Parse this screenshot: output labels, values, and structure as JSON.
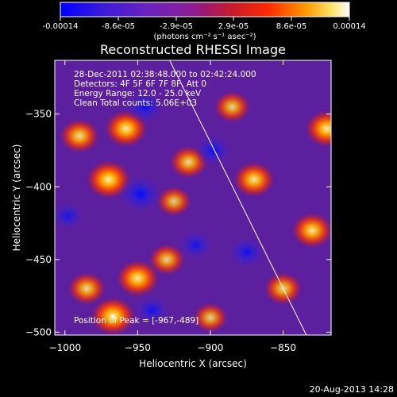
{
  "colorbar": {
    "ticks": [
      "-0.00014",
      "-8.6e-05",
      "-2.9e-05",
      "2.9e-05",
      "8.6e-05",
      "0.00014"
    ],
    "unit_label": "(photons cm⁻² s⁻¹ asec⁻²)"
  },
  "chart": {
    "title": "Reconstructed RHESSI Image",
    "xlabel": "Heliocentric X (arcsec)",
    "ylabel": "Heliocentric Y (arcsec)",
    "info_lines": [
      "28-Dec-2011 02:38:48.000 to 02:42:24.000",
      "Detectors: 4F 5F 6F 7F 8F, Att 0",
      "Energy Range: 12.0 - 25.0 keV",
      "Clean    Total counts: 5.06E+03"
    ],
    "peak_text": "Position of Peak = [-967,-489]"
  },
  "footer": {
    "date": "20-Aug-2013 14:28"
  },
  "chart_data": {
    "type": "heatmap",
    "title": "Reconstructed RHESSI Image",
    "xlabel": "Heliocentric X (arcsec)",
    "ylabel": "Heliocentric Y (arcsec)",
    "xlim": [
      -1007,
      -817
    ],
    "ylim": [
      -502,
      -313
    ],
    "x_ticks": [
      -1000,
      -950,
      -900,
      -850
    ],
    "y_ticks": [
      -350,
      -400,
      -450,
      -500
    ],
    "colorbar_range": [
      -0.00014,
      0.00014
    ],
    "peak_position": [
      -967,
      -489
    ],
    "limb_line": [
      [
        -928,
        -313
      ],
      [
        -834,
        -502
      ]
    ],
    "features": [
      {
        "x": -958,
        "y": -360,
        "value": 0.00013
      },
      {
        "x": -990,
        "y": -365,
        "value": 0.00011
      },
      {
        "x": -970,
        "y": -395,
        "value": 0.00014
      },
      {
        "x": -915,
        "y": -383,
        "value": 0.0001
      },
      {
        "x": -925,
        "y": -410,
        "value": 8e-05
      },
      {
        "x": -870,
        "y": -395,
        "value": 0.00012
      },
      {
        "x": -885,
        "y": -345,
        "value": 9e-05
      },
      {
        "x": -820,
        "y": -360,
        "value": 0.00013
      },
      {
        "x": -830,
        "y": -430,
        "value": 0.00012
      },
      {
        "x": -850,
        "y": -470,
        "value": 0.0001
      },
      {
        "x": -950,
        "y": -463,
        "value": 0.00013
      },
      {
        "x": -985,
        "y": -470,
        "value": 0.0001
      },
      {
        "x": -967,
        "y": -489,
        "value": 0.00014
      },
      {
        "x": -930,
        "y": -450,
        "value": 9e-05
      },
      {
        "x": -900,
        "y": -490,
        "value": 8e-05
      },
      {
        "x": -948,
        "y": -405,
        "value": -0.00014
      },
      {
        "x": -945,
        "y": -345,
        "value": -0.00011
      },
      {
        "x": -898,
        "y": -375,
        "value": -0.0001
      },
      {
        "x": -875,
        "y": -445,
        "value": -0.0001
      },
      {
        "x": -940,
        "y": -485,
        "value": -9e-05
      },
      {
        "x": -910,
        "y": -440,
        "value": -8e-05
      },
      {
        "x": -998,
        "y": -420,
        "value": -7e-05
      }
    ]
  }
}
